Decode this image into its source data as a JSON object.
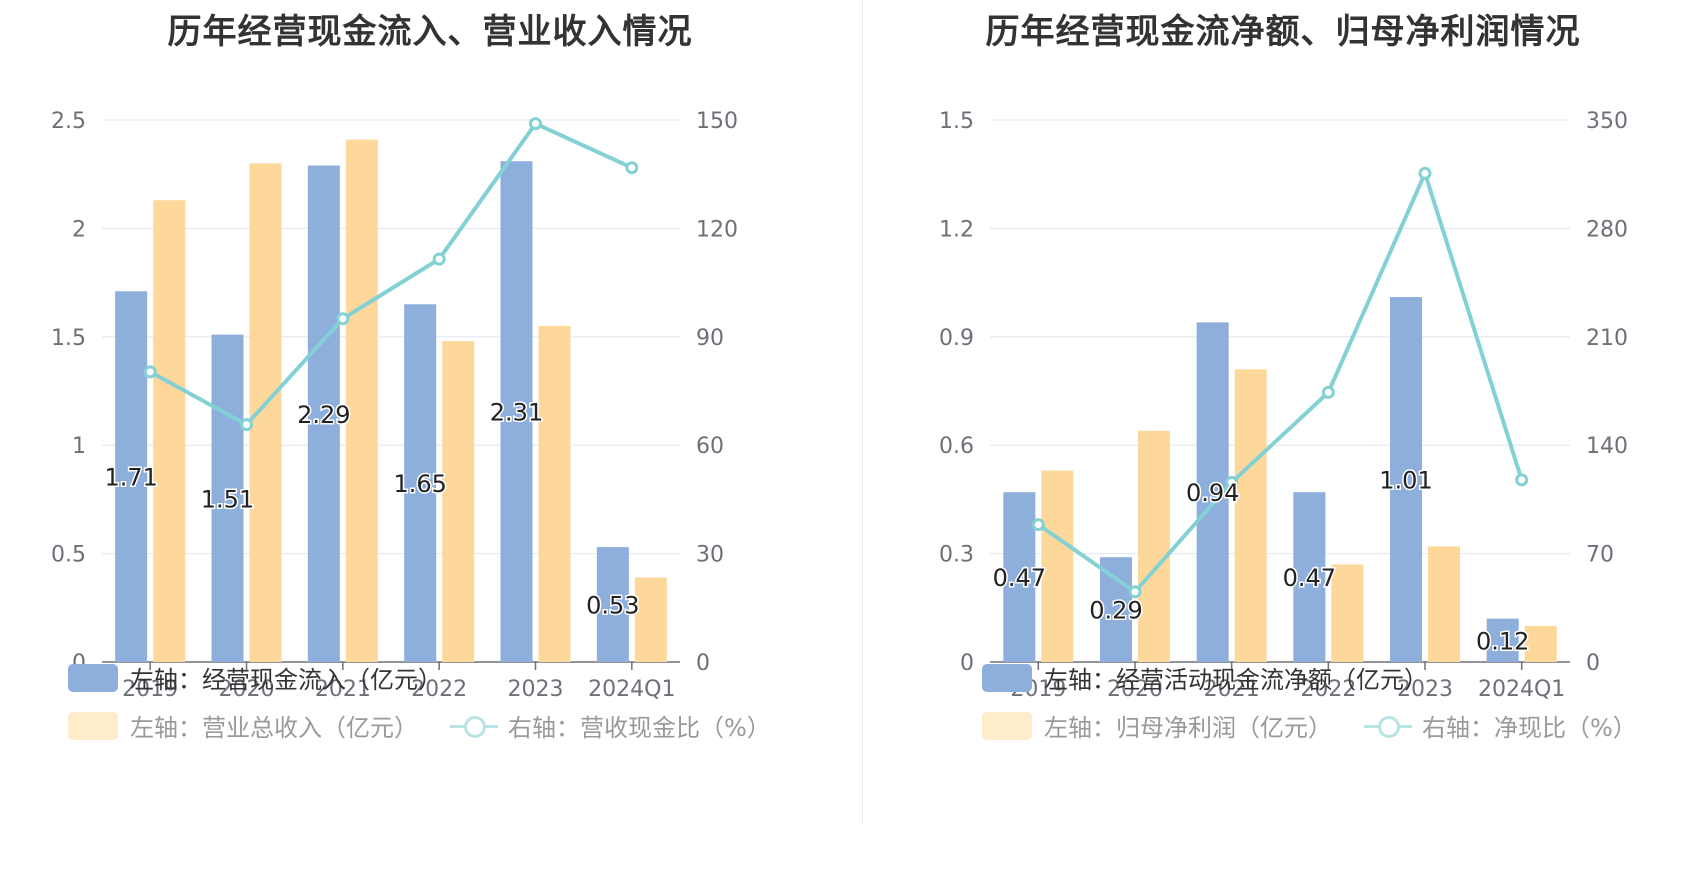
{
  "chart_data": [
    {
      "type": "bar",
      "title": "历年经营现金流入、营业收入情况",
      "categories": [
        "2019",
        "2020",
        "2021",
        "2022",
        "2023",
        "2024Q1"
      ],
      "series": [
        {
          "name": "左轴：经营现金流入（亿元）",
          "axis": "left",
          "kind": "bar",
          "color": "#8eaedb",
          "values": [
            1.71,
            1.51,
            2.29,
            1.65,
            2.31,
            0.53
          ],
          "labels": [
            "1.71",
            "1.51",
            "2.29",
            "1.65",
            "2.31",
            "0.53"
          ]
        },
        {
          "name": "左轴：营业总收入（亿元）",
          "axis": "left",
          "kind": "bar",
          "color": "#fed89b",
          "values": [
            2.13,
            2.3,
            2.41,
            1.48,
            1.55,
            0.39
          ]
        },
        {
          "name": "右轴：营收现金比（%）",
          "axis": "right",
          "kind": "line",
          "color": "#84d1d5",
          "values": [
            80.3,
            65.7,
            95.0,
            111.5,
            149.0,
            136.8
          ]
        }
      ],
      "left_axis": {
        "ticks": [
          "0",
          "0.5",
          "1",
          "1.5",
          "2",
          "2.5"
        ],
        "min": 0,
        "max": 2.5
      },
      "right_axis": {
        "ticks": [
          "0",
          "30",
          "60",
          "90",
          "120",
          "150"
        ],
        "min": 0,
        "max": 150
      },
      "grid": true,
      "legend_position": "bottom-left"
    },
    {
      "type": "bar",
      "title": "历年经营现金流净额、归母净利润情况",
      "categories": [
        "2019",
        "2020",
        "2021",
        "2022",
        "2023",
        "2024Q1"
      ],
      "series": [
        {
          "name": "左轴：经营活动现金流净额（亿元）",
          "axis": "left",
          "kind": "bar",
          "color": "#8eaedb",
          "values": [
            0.47,
            0.29,
            0.94,
            0.47,
            1.01,
            0.12
          ],
          "labels": [
            "0.47",
            "0.29",
            "0.94",
            "0.47",
            "1.01",
            "0.12"
          ]
        },
        {
          "name": "左轴：归母净利润（亿元）",
          "axis": "left",
          "kind": "bar",
          "color": "#fed89b",
          "values": [
            0.53,
            0.64,
            0.81,
            0.27,
            0.32,
            0.1
          ]
        },
        {
          "name": "右轴：净现比（%）",
          "axis": "right",
          "kind": "line",
          "color": "#84d1d5",
          "values": [
            88.7,
            45.3,
            116.0,
            174.1,
            315.6,
            117.6
          ]
        }
      ],
      "left_axis": {
        "ticks": [
          "0",
          "0.3",
          "0.6",
          "0.9",
          "1.2",
          "1.5"
        ],
        "min": 0,
        "max": 1.5
      },
      "right_axis": {
        "ticks": [
          "0",
          "70",
          "140",
          "210",
          "280",
          "350"
        ],
        "min": 0,
        "max": 350
      },
      "grid": true,
      "legend_position": "bottom-left"
    }
  ]
}
